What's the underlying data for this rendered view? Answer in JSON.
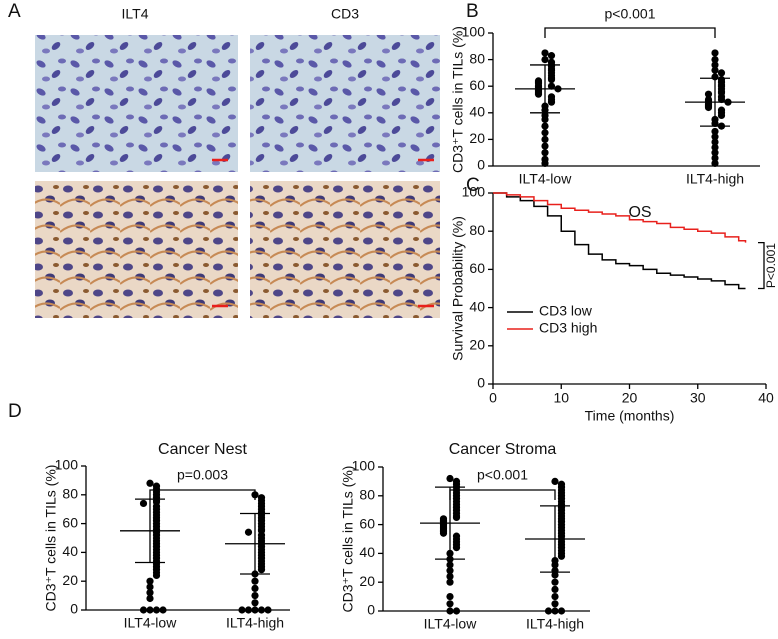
{
  "panel_labels": [
    "A",
    "B",
    "C",
    "D"
  ],
  "image_panel": {
    "column_labels": [
      "ILT4",
      "CD3"
    ]
  },
  "chart_data": [
    {
      "type": "dot",
      "ylabel": "CD3⁺T cells in TILs (%)",
      "annotation": "p<0.001",
      "categories": [
        "ILT4-low",
        "ILT4-high"
      ],
      "groups": [
        [
          85,
          83,
          80,
          78,
          76,
          75,
          73,
          72,
          70,
          68,
          66,
          65,
          64,
          63,
          62,
          60,
          60,
          59,
          58,
          57,
          56,
          55,
          54,
          52,
          50,
          48,
          45,
          42,
          38,
          35,
          30,
          25,
          20,
          15,
          10,
          5,
          2
        ],
        [
          85,
          80,
          76,
          72,
          70,
          67,
          65,
          63,
          61,
          60,
          58,
          56,
          55,
          54,
          52,
          50,
          50,
          49,
          48,
          47,
          46,
          45,
          44,
          42,
          40,
          38,
          35,
          32,
          30,
          26,
          22,
          18,
          14,
          10,
          6,
          2
        ]
      ],
      "means": [
        58,
        48
      ],
      "sds": [
        18,
        18
      ],
      "color": "#000000",
      "ylim": [
        0,
        100
      ],
      "yticks": [
        0,
        20,
        40,
        60,
        80,
        100
      ]
    },
    {
      "type": "survival",
      "title": "OS",
      "xlabel": "Time (months)",
      "ylabel": "Survival Probability (%)",
      "annotation": "P<0.001",
      "x": [
        0,
        2,
        4,
        6,
        8,
        10,
        12,
        14,
        16,
        18,
        20,
        22,
        24,
        26,
        28,
        30,
        32,
        34,
        36,
        37
      ],
      "series": [
        {
          "name": "CD3 low",
          "color": "#000000",
          "values": [
            100,
            98,
            96,
            93,
            88,
            80,
            73,
            68,
            65,
            63,
            62,
            60,
            58,
            57,
            56,
            55,
            54,
            52,
            50,
            50
          ]
        },
        {
          "name": "CD3 high",
          "color": "#e8201c",
          "values": [
            100,
            99,
            98,
            96,
            94,
            92,
            91,
            90,
            89,
            88,
            86,
            85,
            84,
            82,
            81,
            80,
            79,
            77,
            75,
            74
          ]
        }
      ],
      "legend": "lower left",
      "xlim": [
        0,
        40
      ],
      "xticks": [
        0,
        10,
        20,
        30,
        40
      ],
      "ylim": [
        0,
        100
      ],
      "yticks": [
        0,
        20,
        40,
        60,
        80,
        100
      ]
    },
    {
      "type": "dot",
      "title": "Cancer Nest",
      "ylabel": "CD3⁺T cells in TILs (%)",
      "annotation": "p=0.003",
      "categories": [
        "ILT4-low",
        "ILT4-high"
      ],
      "groups": [
        [
          88,
          86,
          84,
          82,
          80,
          78,
          76,
          75,
          74,
          72,
          70,
          68,
          66,
          64,
          62,
          60,
          58,
          56,
          54,
          52,
          50,
          48,
          46,
          44,
          42,
          40,
          38,
          36,
          34,
          32,
          30,
          28,
          26,
          24,
          20,
          16,
          12,
          8,
          0,
          0,
          0,
          0
        ],
        [
          80,
          78,
          76,
          74,
          72,
          70,
          68,
          66,
          64,
          62,
          60,
          58,
          56,
          55,
          54,
          52,
          50,
          48,
          46,
          44,
          42,
          40,
          38,
          36,
          34,
          32,
          30,
          28,
          25,
          20,
          15,
          10,
          5,
          0,
          0,
          0,
          0,
          0
        ]
      ],
      "means": [
        55,
        46
      ],
      "sds": [
        22,
        21
      ],
      "color": "#000000",
      "ylim": [
        0,
        100
      ],
      "yticks": [
        0,
        20,
        40,
        60,
        80,
        100
      ]
    },
    {
      "type": "dot",
      "title": "Cancer Stroma",
      "ylabel": "CD3⁺T cells in TILs (%)",
      "annotation": "p<0.001",
      "categories": [
        "ILT4-low",
        "ILT4-high"
      ],
      "groups": [
        [
          92,
          90,
          88,
          86,
          84,
          82,
          80,
          78,
          76,
          74,
          72,
          70,
          68,
          66,
          65,
          64,
          63,
          62,
          61,
          60,
          59,
          58,
          57,
          56,
          55,
          54,
          52,
          50,
          48,
          46,
          44,
          40,
          36,
          32,
          28,
          24,
          20,
          10,
          5,
          0,
          0
        ],
        [
          90,
          88,
          86,
          84,
          82,
          80,
          78,
          76,
          74,
          72,
          70,
          68,
          66,
          64,
          62,
          60,
          58,
          56,
          54,
          52,
          50,
          48,
          46,
          44,
          42,
          40,
          38,
          35,
          32,
          28,
          25,
          20,
          15,
          10,
          5,
          0,
          0,
          0
        ]
      ],
      "means": [
        61,
        50
      ],
      "sds": [
        25,
        23
      ],
      "color": "#000000",
      "ylim": [
        0,
        100
      ],
      "yticks": [
        0,
        20,
        40,
        60,
        80,
        100
      ]
    }
  ]
}
